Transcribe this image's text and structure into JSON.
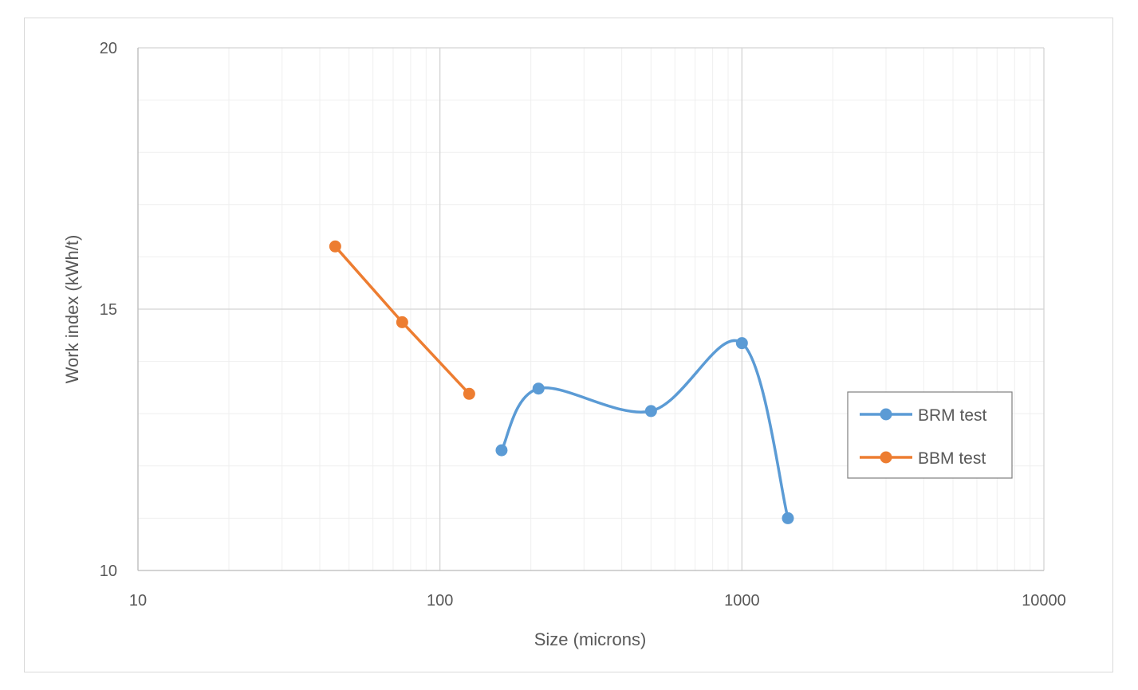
{
  "chart_data": {
    "type": "line",
    "xlabel": "Size (microns)",
    "ylabel": "Work index (kWh/t)",
    "xscale": "log",
    "xlim": [
      10,
      10000
    ],
    "ylim": [
      10,
      20
    ],
    "x_ticks": [
      "10",
      "100",
      "1000",
      "10000"
    ],
    "y_ticks": [
      "10",
      "15",
      "20"
    ],
    "grid": true,
    "legend_position": "right",
    "series": [
      {
        "name": "BRM test",
        "color": "#5b9bd5",
        "smooth": true,
        "x": [
          160,
          212,
          500,
          1000,
          1420
        ],
        "y": [
          12.3,
          13.48,
          13.05,
          14.35,
          11.0
        ]
      },
      {
        "name": "BBM test",
        "color": "#ed7d31",
        "smooth": false,
        "x": [
          45,
          75,
          125
        ],
        "y": [
          16.2,
          14.75,
          13.38
        ]
      }
    ]
  }
}
